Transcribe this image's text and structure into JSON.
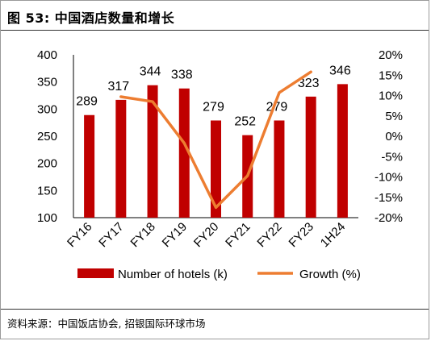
{
  "title": "图 53: 中国酒店数量和增长",
  "source": "资料来源：中国饭店协会, 招银国际环球市场",
  "colors": {
    "bar": "#c00000",
    "line": "#ed7d31"
  },
  "chart_data": {
    "type": "bar",
    "categories": [
      "FY16",
      "FY17",
      "FY18",
      "FY19",
      "FY20",
      "FY21",
      "FY22",
      "FY23",
      "1H24"
    ],
    "series": [
      {
        "name": "Number of hotels (k)",
        "type": "bar",
        "axis": "left",
        "values": [
          289,
          317,
          344,
          338,
          279,
          252,
          279,
          323,
          346
        ]
      },
      {
        "name": "Growth (%)",
        "type": "line",
        "axis": "right",
        "values": [
          null,
          9.7,
          8.5,
          -1.7,
          -17.5,
          -9.7,
          10.7,
          15.8,
          null
        ]
      }
    ],
    "ylim": [
      100,
      400
    ],
    "yticks": [
      100,
      150,
      200,
      250,
      300,
      350,
      400
    ],
    "y2lim": [
      -20,
      20
    ],
    "y2ticks": [
      "-20%",
      "-15%",
      "-10%",
      "-5%",
      "0%",
      "5%",
      "10%",
      "15%",
      "20%"
    ],
    "bar_labels": [
      "289",
      "317",
      "344",
      "338",
      "279",
      "252",
      "279",
      "323",
      "346"
    ],
    "legend": "bottom",
    "grid": false
  }
}
